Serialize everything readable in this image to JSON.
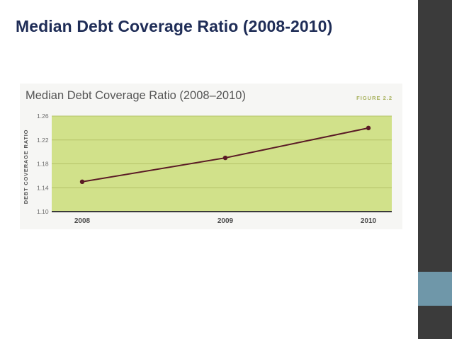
{
  "slide": {
    "title": "Median Debt Coverage Ratio (2008-2010)"
  },
  "figure": {
    "title": "Median Debt Coverage Ratio (2008–2010)",
    "label": "FIGURE 2.2"
  },
  "colors": {
    "plot_bg": "#d1e18a",
    "gridline": "#b4c268",
    "line": "#5a1a25",
    "title": "#1f2d57",
    "sidebar": "#3b3b3b",
    "sidebar_accent": "#6f97a9"
  },
  "chart_data": {
    "type": "line",
    "title": "Median Debt Coverage Ratio (2008–2010)",
    "xlabel": "",
    "ylabel": "DEBT COVERAGE RATIO",
    "categories": [
      "2008",
      "2009",
      "2010"
    ],
    "series": [
      {
        "values": [
          1.15,
          1.19,
          1.24
        ]
      }
    ],
    "ylim": [
      1.1,
      1.26
    ],
    "yticks": [
      "1.10",
      "1.14",
      "1.18",
      "1.22",
      "1.26"
    ],
    "grid": true,
    "legend": "none"
  }
}
